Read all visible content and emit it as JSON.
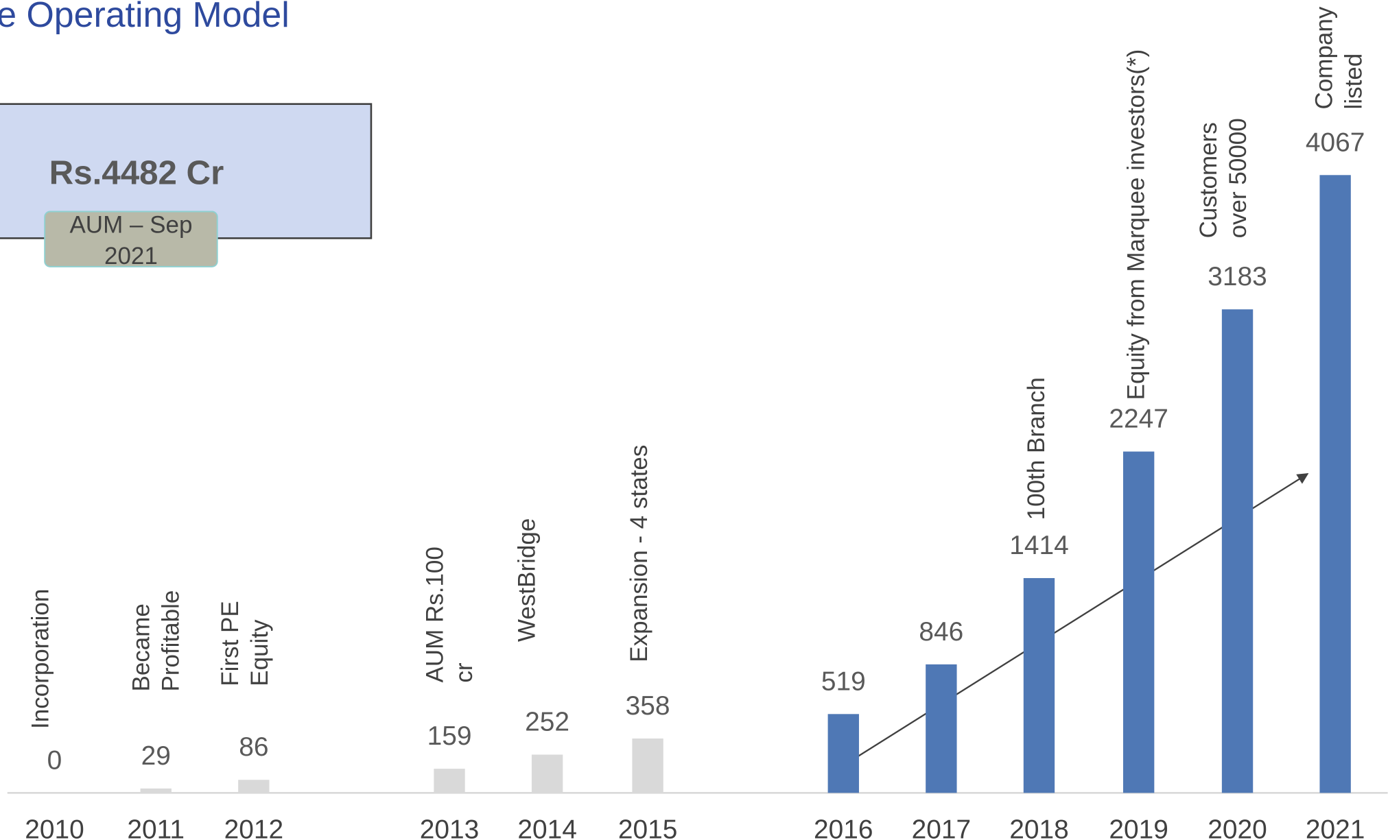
{
  "chart_data": {
    "type": "bar",
    "title": "e Operating Model",
    "callout": {
      "value": "Rs.4482 Cr",
      "label": [
        "AUM – Sep",
        "2021"
      ]
    },
    "categories": [
      "2010",
      "2011",
      "2012",
      "2013",
      "2014",
      "2015",
      "2016",
      "2017",
      "2018",
      "2019",
      "2020",
      "2021"
    ],
    "values": [
      0,
      29,
      86,
      159,
      252,
      358,
      519,
      846,
      1414,
      2247,
      3183,
      4067
    ],
    "colors": [
      "#d9d9d9",
      "#d9d9d9",
      "#d9d9d9",
      "#d9d9d9",
      "#d9d9d9",
      "#d9d9d9",
      "#4f78b5",
      "#4f78b5",
      "#4f78b5",
      "#4f78b5",
      "#4f78b5",
      "#4f78b5"
    ],
    "annotations": [
      [
        "Incorporation"
      ],
      [
        "Became",
        "Profitable"
      ],
      [
        "First PE",
        "Equity"
      ],
      [
        "AUM Rs.100",
        "cr"
      ],
      [
        "WestBridge"
      ],
      [
        "Expansion - 4 states"
      ],
      null,
      null,
      [
        "100th Branch"
      ],
      [
        "Equity from Marquee investors(*)"
      ],
      [
        "Customers",
        "over 50000"
      ],
      [
        "Company",
        "listed"
      ]
    ],
    "ylim": [
      0,
      5000
    ]
  }
}
